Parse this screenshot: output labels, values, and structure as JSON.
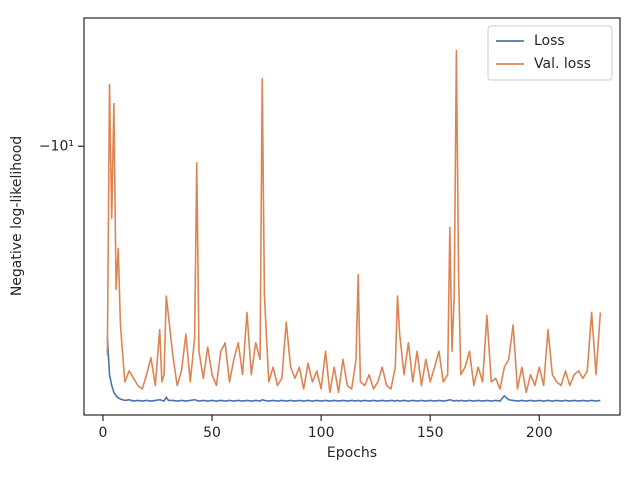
{
  "chart_data": {
    "type": "line",
    "xlabel": "Epochs",
    "ylabel": "Negative log-likelihood",
    "yscale": "symlog",
    "legend": "upper right",
    "xlim": [
      -8.7,
      237
    ],
    "xticks": [
      0,
      50,
      100,
      150,
      200
    ],
    "ylim": [
      -35,
      -5.5
    ],
    "yticks": [
      {
        "value": -10,
        "label": "−10¹"
      }
    ],
    "x": [
      2,
      3,
      4,
      5,
      6,
      7,
      8,
      10,
      12,
      14,
      16,
      18,
      20,
      22,
      24,
      26,
      27,
      28,
      29,
      30,
      32,
      34,
      36,
      38,
      40,
      42,
      43,
      44,
      46,
      48,
      50,
      52,
      54,
      56,
      58,
      60,
      62,
      64,
      66,
      68,
      70,
      72,
      73,
      74,
      76,
      78,
      80,
      82,
      84,
      86,
      88,
      90,
      92,
      94,
      96,
      98,
      100,
      102,
      104,
      106,
      108,
      110,
      112,
      114,
      116,
      117,
      118,
      120,
      122,
      124,
      126,
      128,
      130,
      132,
      134,
      135,
      136,
      138,
      140,
      142,
      144,
      146,
      148,
      150,
      152,
      154,
      156,
      158,
      159,
      160,
      161,
      162,
      163,
      164,
      166,
      168,
      170,
      172,
      174,
      176,
      178,
      180,
      182,
      184,
      186,
      188,
      190,
      192,
      194,
      196,
      198,
      200,
      202,
      204,
      206,
      208,
      210,
      212,
      214,
      216,
      218,
      220,
      222,
      224,
      226,
      228
    ],
    "series": [
      {
        "name": "Loss",
        "color": "#4c72b0",
        "values": [
          -24.3,
          -29,
          -30.5,
          -31.5,
          -32,
          -32.3,
          -32.5,
          -32.7,
          -32.6,
          -32.8,
          -32.7,
          -32.8,
          -32.7,
          -32.8,
          -32.7,
          -32.6,
          -32.7,
          -32.8,
          -32.2,
          -32.7,
          -32.7,
          -32.8,
          -32.7,
          -32.8,
          -32.7,
          -32.6,
          -32.7,
          -32.8,
          -32.7,
          -32.8,
          -32.7,
          -32.8,
          -32.7,
          -32.8,
          -32.7,
          -32.8,
          -32.7,
          -32.8,
          -32.7,
          -32.8,
          -32.7,
          -32.8,
          -32.6,
          -32.7,
          -32.8,
          -32.7,
          -32.8,
          -32.7,
          -32.8,
          -32.7,
          -32.8,
          -32.7,
          -32.8,
          -32.7,
          -32.8,
          -32.7,
          -32.8,
          -32.7,
          -32.8,
          -32.7,
          -32.8,
          -32.7,
          -32.8,
          -32.7,
          -32.8,
          -32.7,
          -32.8,
          -32.7,
          -32.8,
          -32.7,
          -32.8,
          -32.7,
          -32.8,
          -32.7,
          -32.8,
          -32.7,
          -32.8,
          -32.7,
          -32.8,
          -32.7,
          -32.8,
          -32.7,
          -32.8,
          -32.7,
          -32.8,
          -32.7,
          -32.8,
          -32.7,
          -32.6,
          -32.7,
          -32.8,
          -32.7,
          -32.8,
          -32.7,
          -32.8,
          -32.7,
          -32.8,
          -32.7,
          -32.8,
          -32.7,
          -32.8,
          -32.7,
          -32.8,
          -32.0,
          -32.6,
          -32.7,
          -32.8,
          -32.7,
          -32.8,
          -32.7,
          -32.8,
          -32.7,
          -32.8,
          -32.7,
          -32.8,
          -32.7,
          -32.8,
          -32.7,
          -32.8,
          -32.7,
          -32.8,
          -32.7,
          -32.8,
          -32.7,
          -32.8,
          -32.7
        ]
      },
      {
        "name": "Val. loss",
        "color": "#dd8452",
        "values": [
          -26.5,
          -7.5,
          -14,
          -8.2,
          -19.5,
          -16.1,
          -23,
          -30,
          -28.5,
          -29.5,
          -30.5,
          -31,
          -29,
          -26.8,
          -30.5,
          -23.5,
          -30,
          -29,
          -20.1,
          -22,
          -26.5,
          -30.5,
          -28.5,
          -24,
          -30,
          -24.5,
          -10.8,
          -26,
          -29.5,
          -25.5,
          -29,
          -30.5,
          -26,
          -25,
          -30,
          -27,
          -25,
          -29,
          -21.7,
          -29,
          -25,
          -27,
          -7.3,
          -20,
          -30,
          -28,
          -30.5,
          -29.5,
          -22.7,
          -28,
          -29.5,
          -28,
          -31,
          -27.5,
          -30,
          -28.5,
          -31,
          -26,
          -31.5,
          -28,
          -31.5,
          -27,
          -30.5,
          -31,
          -27,
          -18.2,
          -30,
          -30.5,
          -29,
          -31,
          -30,
          -28,
          -30.5,
          -31,
          -28,
          -20.1,
          -24,
          -29,
          -25,
          -30,
          -26,
          -30.5,
          -27,
          -30,
          -28,
          -26,
          -30,
          -29,
          -14.6,
          -26,
          -20,
          -6.4,
          -18,
          -29,
          -28,
          -26,
          -30.5,
          -28,
          -30,
          -22,
          -30,
          -29.5,
          -31,
          -28,
          -27,
          -23,
          -31,
          -28,
          -31.5,
          -29,
          -30.5,
          -28,
          -30.5,
          -23.5,
          -29,
          -30,
          -30.5,
          -28.5,
          -30.5,
          -29,
          -28.5,
          -29.5,
          -28.5,
          -21.7,
          -29,
          -21.7
        ]
      }
    ]
  }
}
